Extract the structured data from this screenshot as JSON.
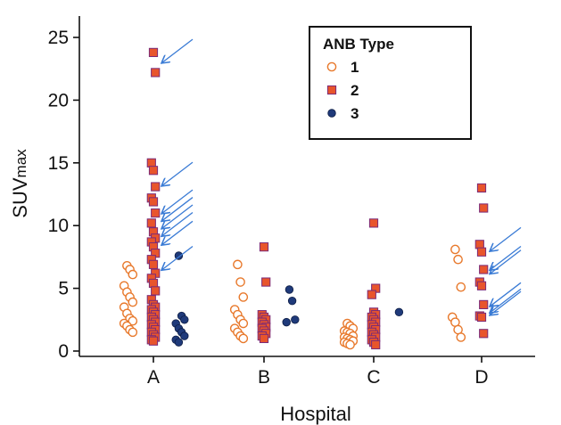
{
  "chart_data": {
    "type": "scatter",
    "xlabel": "Hospital",
    "ylabel": "SUVmax",
    "ylabel_main": "SUV",
    "ylabel_sub": "max",
    "categories": [
      "A",
      "B",
      "C",
      "D"
    ],
    "ylim": [
      0,
      25
    ],
    "yticks": [
      0,
      5,
      10,
      15,
      20,
      25
    ],
    "grid": false,
    "legend": {
      "title": "ANB Type",
      "position": "top-right",
      "entries": [
        {
          "label": "1",
          "marker": "open-circle",
          "color": "#e8792c"
        },
        {
          "label": "2",
          "marker": "square",
          "color": "#e8552c"
        },
        {
          "label": "3",
          "marker": "filled-circle",
          "color": "#1f3a7a"
        }
      ]
    },
    "colors": {
      "type1": "#e8792c",
      "type2_fill": "#e8552c",
      "type2_edge": "#7a2a78",
      "type3": "#1f3a7a",
      "arrows": "#3a7bd5"
    },
    "series": [
      {
        "name": "1",
        "points": [
          {
            "x": "A",
            "y": 6.8
          },
          {
            "x": "A",
            "y": 6.5
          },
          {
            "x": "A",
            "y": 6.1
          },
          {
            "x": "A",
            "y": 5.2
          },
          {
            "x": "A",
            "y": 4.7
          },
          {
            "x": "A",
            "y": 4.3
          },
          {
            "x": "A",
            "y": 3.9
          },
          {
            "x": "A",
            "y": 3.5
          },
          {
            "x": "A",
            "y": 3.0
          },
          {
            "x": "A",
            "y": 2.6
          },
          {
            "x": "A",
            "y": 2.4
          },
          {
            "x": "A",
            "y": 2.2
          },
          {
            "x": "A",
            "y": 2.0
          },
          {
            "x": "A",
            "y": 1.7
          },
          {
            "x": "A",
            "y": 1.5
          },
          {
            "x": "B",
            "y": 6.9
          },
          {
            "x": "B",
            "y": 5.5
          },
          {
            "x": "B",
            "y": 4.3
          },
          {
            "x": "B",
            "y": 3.3
          },
          {
            "x": "B",
            "y": 2.9
          },
          {
            "x": "B",
            "y": 2.5
          },
          {
            "x": "B",
            "y": 2.2
          },
          {
            "x": "B",
            "y": 1.8
          },
          {
            "x": "B",
            "y": 1.5
          },
          {
            "x": "B",
            "y": 1.2
          },
          {
            "x": "B",
            "y": 1.0
          },
          {
            "x": "C",
            "y": 2.2
          },
          {
            "x": "C",
            "y": 2.0
          },
          {
            "x": "C",
            "y": 1.8
          },
          {
            "x": "C",
            "y": 1.6
          },
          {
            "x": "C",
            "y": 1.5
          },
          {
            "x": "C",
            "y": 1.4
          },
          {
            "x": "C",
            "y": 1.2
          },
          {
            "x": "C",
            "y": 1.1
          },
          {
            "x": "C",
            "y": 1.0
          },
          {
            "x": "C",
            "y": 0.9
          },
          {
            "x": "C",
            "y": 0.8
          },
          {
            "x": "C",
            "y": 0.7
          },
          {
            "x": "C",
            "y": 0.6
          },
          {
            "x": "C",
            "y": 0.5
          },
          {
            "x": "D",
            "y": 8.1
          },
          {
            "x": "D",
            "y": 7.3
          },
          {
            "x": "D",
            "y": 5.1
          },
          {
            "x": "D",
            "y": 2.7
          },
          {
            "x": "D",
            "y": 2.3
          },
          {
            "x": "D",
            "y": 1.7
          },
          {
            "x": "D",
            "y": 1.1
          }
        ]
      },
      {
        "name": "2",
        "points": [
          {
            "x": "A",
            "y": 23.8
          },
          {
            "x": "A",
            "y": 22.2
          },
          {
            "x": "A",
            "y": 15.0
          },
          {
            "x": "A",
            "y": 14.4
          },
          {
            "x": "A",
            "y": 13.1
          },
          {
            "x": "A",
            "y": 12.2
          },
          {
            "x": "A",
            "y": 11.9
          },
          {
            "x": "A",
            "y": 11.0
          },
          {
            "x": "A",
            "y": 10.2
          },
          {
            "x": "A",
            "y": 9.5
          },
          {
            "x": "A",
            "y": 9.0
          },
          {
            "x": "A",
            "y": 8.7
          },
          {
            "x": "A",
            "y": 8.3
          },
          {
            "x": "A",
            "y": 7.8
          },
          {
            "x": "A",
            "y": 7.3
          },
          {
            "x": "A",
            "y": 6.9
          },
          {
            "x": "A",
            "y": 6.2
          },
          {
            "x": "A",
            "y": 5.8
          },
          {
            "x": "A",
            "y": 5.4
          },
          {
            "x": "A",
            "y": 4.8
          },
          {
            "x": "A",
            "y": 4.1
          },
          {
            "x": "A",
            "y": 3.7
          },
          {
            "x": "A",
            "y": 3.5
          },
          {
            "x": "A",
            "y": 3.3
          },
          {
            "x": "A",
            "y": 3.1
          },
          {
            "x": "A",
            "y": 2.9
          },
          {
            "x": "A",
            "y": 2.7
          },
          {
            "x": "A",
            "y": 2.5
          },
          {
            "x": "A",
            "y": 2.3
          },
          {
            "x": "A",
            "y": 2.1
          },
          {
            "x": "A",
            "y": 1.9
          },
          {
            "x": "A",
            "y": 1.7
          },
          {
            "x": "A",
            "y": 1.5
          },
          {
            "x": "A",
            "y": 1.3
          },
          {
            "x": "A",
            "y": 1.1
          },
          {
            "x": "A",
            "y": 0.9
          },
          {
            "x": "A",
            "y": 0.8
          },
          {
            "x": "B",
            "y": 8.3
          },
          {
            "x": "B",
            "y": 5.5
          },
          {
            "x": "B",
            "y": 2.9
          },
          {
            "x": "B",
            "y": 2.7
          },
          {
            "x": "B",
            "y": 2.5
          },
          {
            "x": "B",
            "y": 2.3
          },
          {
            "x": "B",
            "y": 2.1
          },
          {
            "x": "B",
            "y": 1.9
          },
          {
            "x": "B",
            "y": 1.8
          },
          {
            "x": "B",
            "y": 1.6
          },
          {
            "x": "B",
            "y": 1.4
          },
          {
            "x": "B",
            "y": 1.2
          },
          {
            "x": "B",
            "y": 1.0
          },
          {
            "x": "C",
            "y": 10.2
          },
          {
            "x": "C",
            "y": 5.0
          },
          {
            "x": "C",
            "y": 4.5
          },
          {
            "x": "C",
            "y": 3.1
          },
          {
            "x": "C",
            "y": 2.9
          },
          {
            "x": "C",
            "y": 2.7
          },
          {
            "x": "C",
            "y": 2.5
          },
          {
            "x": "C",
            "y": 2.3
          },
          {
            "x": "C",
            "y": 2.1
          },
          {
            "x": "C",
            "y": 1.9
          },
          {
            "x": "C",
            "y": 1.7
          },
          {
            "x": "C",
            "y": 1.5
          },
          {
            "x": "C",
            "y": 1.3
          },
          {
            "x": "C",
            "y": 1.1
          },
          {
            "x": "C",
            "y": 0.9
          },
          {
            "x": "C",
            "y": 0.7
          },
          {
            "x": "C",
            "y": 0.5
          },
          {
            "x": "D",
            "y": 13.0
          },
          {
            "x": "D",
            "y": 11.4
          },
          {
            "x": "D",
            "y": 8.5
          },
          {
            "x": "D",
            "y": 7.9
          },
          {
            "x": "D",
            "y": 6.5
          },
          {
            "x": "D",
            "y": 5.5
          },
          {
            "x": "D",
            "y": 5.2
          },
          {
            "x": "D",
            "y": 3.7
          },
          {
            "x": "D",
            "y": 2.8
          },
          {
            "x": "D",
            "y": 2.7
          },
          {
            "x": "D",
            "y": 1.4
          }
        ]
      },
      {
        "name": "3",
        "points": [
          {
            "x": "A",
            "y": 7.6
          },
          {
            "x": "A",
            "y": 2.8
          },
          {
            "x": "A",
            "y": 2.5
          },
          {
            "x": "A",
            "y": 2.2
          },
          {
            "x": "A",
            "y": 1.8
          },
          {
            "x": "A",
            "y": 1.5
          },
          {
            "x": "A",
            "y": 1.2
          },
          {
            "x": "A",
            "y": 0.9
          },
          {
            "x": "A",
            "y": 0.7
          },
          {
            "x": "B",
            "y": 4.9
          },
          {
            "x": "B",
            "y": 4.0
          },
          {
            "x": "B",
            "y": 2.5
          },
          {
            "x": "B",
            "y": 2.3
          },
          {
            "x": "C",
            "y": 3.1
          }
        ]
      }
    ],
    "annotations": {
      "arrows": [
        {
          "x": "A",
          "y": 23.0
        },
        {
          "x": "A",
          "y": 13.2
        },
        {
          "x": "A",
          "y": 11.0
        },
        {
          "x": "A",
          "y": 10.4
        },
        {
          "x": "A",
          "y": 9.8
        },
        {
          "x": "A",
          "y": 9.2
        },
        {
          "x": "A",
          "y": 8.5
        },
        {
          "x": "A",
          "y": 6.5
        },
        {
          "x": "D",
          "y": 8.0
        },
        {
          "x": "D",
          "y": 6.5
        },
        {
          "x": "D",
          "y": 6.2
        },
        {
          "x": "D",
          "y": 3.6
        },
        {
          "x": "D",
          "y": 3.1
        },
        {
          "x": "D",
          "y": 2.9
        }
      ]
    }
  }
}
